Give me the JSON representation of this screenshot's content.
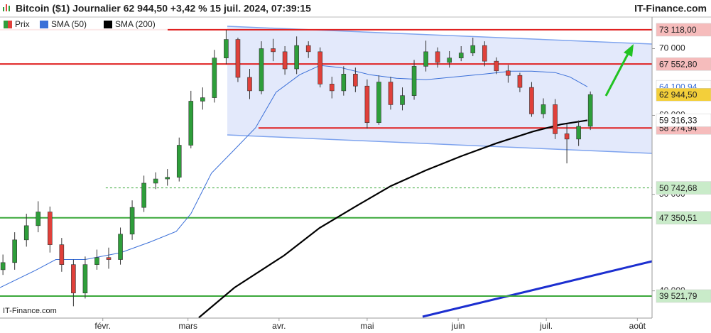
{
  "chart_data": {
    "type": "candlestick",
    "title": "Bitcoin ($1) Journalier 62 944,50 +3,42 % 15 juil. 2024, 07:39:15",
    "source": "IT-Finance.com",
    "watermark": "IT-Finance.com",
    "price_name": "Prix",
    "up_color": "#2e9e3a",
    "down_color": "#e0403a",
    "log_scale": true,
    "xlim": [
      -4,
      218
    ],
    "xticks": [
      {
        "value": 31,
        "label": "févr."
      },
      {
        "value": 60,
        "label": "mars"
      },
      {
        "value": 91,
        "label": "avr."
      },
      {
        "value": 121,
        "label": "mai"
      },
      {
        "value": 152,
        "label": "juin"
      },
      {
        "value": 182,
        "label": "juil."
      },
      {
        "value": 213,
        "label": "août"
      }
    ],
    "ylim": [
      37560,
      75300
    ],
    "yticks": [
      {
        "value": 40000,
        "label": "40 000"
      },
      {
        "value": 50000,
        "label": "50 000"
      },
      {
        "value": 60000,
        "label": "60 000"
      },
      {
        "value": 70000,
        "label": "70 000"
      }
    ],
    "x": [
      -3,
      1,
      5,
      9,
      13,
      17,
      21,
      25,
      29,
      33,
      37,
      41,
      45,
      49,
      53,
      57,
      61,
      65,
      69,
      73,
      77,
      81,
      85,
      89,
      93,
      97,
      101,
      105,
      109,
      113,
      117,
      121,
      125,
      129,
      133,
      137,
      141,
      145,
      149,
      153,
      157,
      161,
      165,
      169,
      173,
      177,
      181,
      185,
      189,
      193,
      197
    ],
    "open": [
      42000,
      42700,
      45000,
      46500,
      48000,
      44500,
      42500,
      39800,
      42500,
      43200,
      43000,
      45600,
      48500,
      51300,
      51800,
      52000,
      56000,
      62000,
      62500,
      68500,
      71500,
      65500,
      63500,
      70000,
      69500,
      66800,
      70500,
      69500,
      64500,
      63500,
      66000,
      64200,
      59000,
      64800,
      61500,
      62800,
      67200,
      69500,
      67800,
      68500,
      69300,
      70500,
      68000,
      66500,
      65800,
      64000,
      60200,
      61500,
      57500,
      56800,
      58500
    ],
    "high": [
      43500,
      45800,
      47800,
      49200,
      48600,
      45200,
      43000,
      43300,
      44000,
      44200,
      46300,
      49300,
      52200,
      52600,
      53000,
      57000,
      63500,
      64000,
      69800,
      73118,
      71800,
      66800,
      71200,
      71600,
      70400,
      72000,
      71200,
      70200,
      65600,
      67200,
      67000,
      65200,
      65800,
      65600,
      64000,
      68200,
      71300,
      70200,
      69600,
      70400,
      71800,
      71200,
      68600,
      67400,
      66200,
      64800,
      62400,
      62300,
      58800,
      59300,
      63400
    ],
    "low": [
      41500,
      42000,
      44300,
      45800,
      43700,
      41800,
      38600,
      39300,
      42000,
      42100,
      42500,
      45000,
      48000,
      50600,
      51000,
      51500,
      55600,
      60800,
      61800,
      67500,
      64800,
      62300,
      63000,
      68000,
      65900,
      66000,
      68500,
      64000,
      62400,
      62800,
      63300,
      58200,
      58700,
      60800,
      60700,
      62200,
      66400,
      67000,
      67000,
      68000,
      68800,
      67200,
      66000,
      64700,
      63300,
      59800,
      59600,
      56800,
      53700,
      55900,
      58000
    ],
    "close": [
      42700,
      45000,
      46500,
      48000,
      44500,
      42500,
      39800,
      42500,
      43200,
      43000,
      45600,
      48500,
      51300,
      51800,
      52000,
      56000,
      62000,
      62500,
      68500,
      71500,
      65500,
      63500,
      70000,
      69500,
      66800,
      70500,
      69500,
      64500,
      63500,
      66000,
      64200,
      59000,
      64800,
      61500,
      62800,
      67200,
      69500,
      67800,
      68500,
      69300,
      70500,
      68000,
      66500,
      65800,
      64000,
      60200,
      61500,
      57500,
      56800,
      58500,
      62944.5
    ],
    "series": [
      {
        "name": "SMA (50)",
        "color": "#3a6fd8",
        "width": 1,
        "x": [
          -4,
          8,
          15,
          25,
          37,
          47,
          56,
          61,
          68,
          76,
          83,
          90,
          98,
          105,
          112,
          122,
          131,
          141,
          151,
          161,
          170,
          177,
          185,
          190,
          196
        ],
        "values": [
          40300,
          41930,
          43000,
          43000,
          43680,
          44770,
          45880,
          47800,
          52500,
          55500,
          58300,
          63290,
          65900,
          67340,
          67000,
          65900,
          65370,
          65160,
          65580,
          66010,
          66450,
          66450,
          66230,
          65580,
          64100.94
        ]
      },
      {
        "name": "SMA (200)",
        "color": "#000000",
        "width": 2.2,
        "x": [
          63.7,
          75.8,
          92.7,
          104.8,
          117,
          129,
          141,
          153,
          165,
          177.5,
          187,
          196
        ],
        "values": [
          37600,
          40300,
          43400,
          46260,
          48600,
          50950,
          52840,
          54600,
          56250,
          57800,
          58760,
          59316.33
        ]
      }
    ],
    "levels": [
      {
        "value": 73118,
        "label": "73 118,00",
        "color": "#e02020",
        "dashed": false,
        "start": -4
      },
      {
        "value": 67552.8,
        "label": "67 552,80",
        "color": "#e02020",
        "dashed": false,
        "start": -4
      },
      {
        "value": 58274.94,
        "label": "58 274,94",
        "color": "#e02020",
        "dashed": false,
        "start": 84
      },
      {
        "value": 50742.68,
        "label": "50 742,68",
        "color": "#3aa83a",
        "dashed": true,
        "start": 32
      },
      {
        "value": 47350.51,
        "label": "47 350,51",
        "color": "#3aa83a",
        "dashed": false,
        "start": -4
      },
      {
        "value": 39521.79,
        "label": "39 521,79",
        "color": "#3aa83a",
        "dashed": false,
        "start": -4
      }
    ],
    "tags": [
      {
        "value": 64100.94,
        "label": "64 100,94",
        "color": "#3a6fd8",
        "fill": "#ffffff"
      },
      {
        "value": 62944.5,
        "label": "62 944,50",
        "color": "#222222",
        "fill": "#f3cf3a"
      },
      {
        "value": 59316.33,
        "label": "59 316,33",
        "color": "#222222",
        "fill": "#ffffff"
      }
    ]
  }
}
